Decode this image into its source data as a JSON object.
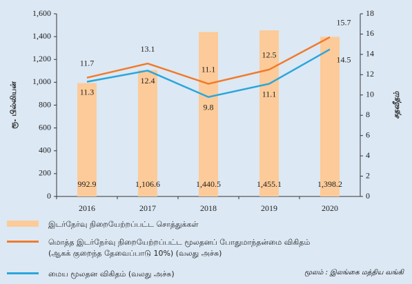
{
  "chart_data": {
    "type": "bar",
    "categories": [
      "2016",
      "2017",
      "2018",
      "2019",
      "2020"
    ],
    "y_label": "ரூ. பில்லியன்",
    "y2_label": "சதவீதம்",
    "series": [
      {
        "name": "இடர்நேர்வு நிறையேற்றப்பட்ட சொத்துக்கள்",
        "type": "bar",
        "color": "#fccb99",
        "values": [
          992.9,
          1106.6,
          1440.5,
          1455.1,
          1398.2
        ],
        "value_labels": [
          "992.9",
          "1,106.6",
          "1,440.5",
          "1,455.1",
          "1,398.2"
        ]
      },
      {
        "name": "மொத்த இடர்நேர்வு நிறையேற்றப்பட்ட மூலதனப் போதுமாந்தன்மை விகிதம் (ஆகக் குறைந்த தேவைப்பாடு 10%) (வலது அச்சு)",
        "type": "line",
        "axis": "y2",
        "color": "#f07b2b",
        "values": [
          11.7,
          13.1,
          11.1,
          12.5,
          15.7
        ]
      },
      {
        "name": "மைய மூலதன விகிதம் (வலது அச்சு)",
        "type": "line",
        "axis": "y2",
        "color": "#2aa6db",
        "values": [
          11.3,
          12.4,
          9.8,
          11.1,
          14.5
        ]
      }
    ],
    "ylim": [
      0,
      1600
    ],
    "yticks": [
      0,
      {
        "value": 200,
        "label": "200"
      },
      {
        "value": 400,
        "label": "400"
      },
      {
        "value": 600,
        "label": "600"
      },
      {
        "value": 800,
        "label": "800"
      },
      {
        "value": 1000,
        "label": "1,000"
      },
      {
        "value": 1200,
        "label": "1,200"
      },
      {
        "value": 1400,
        "label": "1,400"
      },
      {
        "value": 1600,
        "label": "1,600"
      }
    ],
    "y2lim": [
      0,
      18
    ],
    "y2ticks": [
      0,
      2,
      4,
      6,
      8,
      10,
      12,
      14,
      16,
      18
    ],
    "source": "மூலம் : இலங்கை மத்திய வங்கி"
  }
}
